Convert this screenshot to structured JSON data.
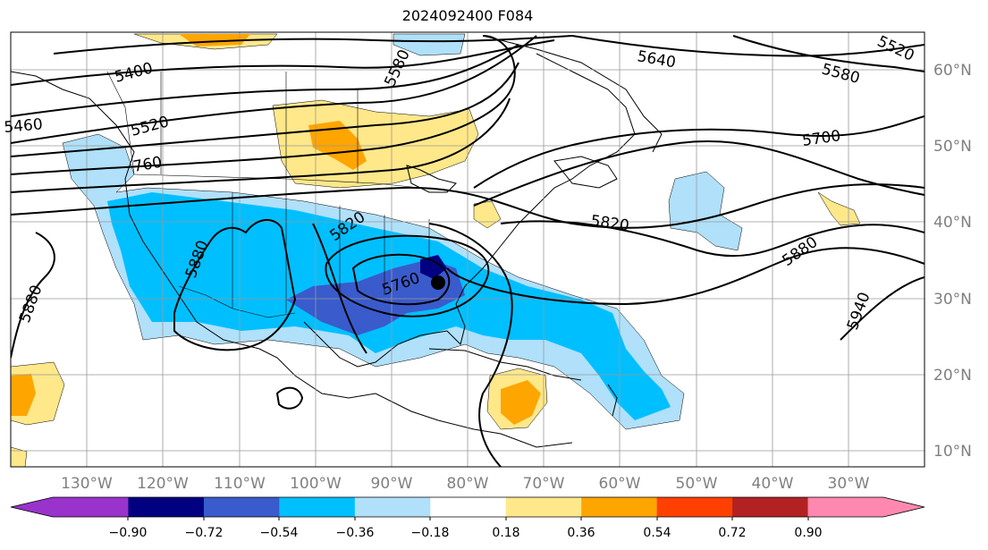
{
  "title": "2024092400 F084",
  "lon_labels": [
    "130°W",
    "120°W",
    "110°W",
    "100°W",
    "90°W",
    "80°W",
    "70°W",
    "60°W",
    "50°W",
    "40°W",
    "30°W"
  ],
  "lat_labels": [
    "60°N",
    "50°N",
    "40°N",
    "30°N",
    "20°N",
    "10°N"
  ],
  "colorbar": {
    "labels": [
      "−0.90",
      "−0.72",
      "−0.54",
      "−0.36",
      "−0.18",
      "0.18",
      "0.36",
      "0.54",
      "0.72",
      "0.90"
    ],
    "colors": [
      "#9933cc",
      "#000080",
      "#3a5bcc",
      "#00bfff",
      "#b0e0fa",
      "#ffffff",
      "#ffe88a",
      "#ffa500",
      "#ff4000",
      "#b22222",
      "#ff88b0",
      "#ff88b0"
    ]
  },
  "contour_labels": [
    "5400",
    "5520",
    "5460",
    "5580",
    "5640",
    "5580",
    "5520",
    "5700",
    "5820",
    "5880",
    "5880",
    "5880",
    "5820",
    "5760",
    "5940",
    "5760"
  ],
  "colors": {
    "light_blue": "#b0e0fa",
    "blue": "#00bfff",
    "med_blue": "#3a5bcc",
    "navy": "#000080",
    "yellow": "#ffe88a",
    "orange": "#ffa500"
  }
}
